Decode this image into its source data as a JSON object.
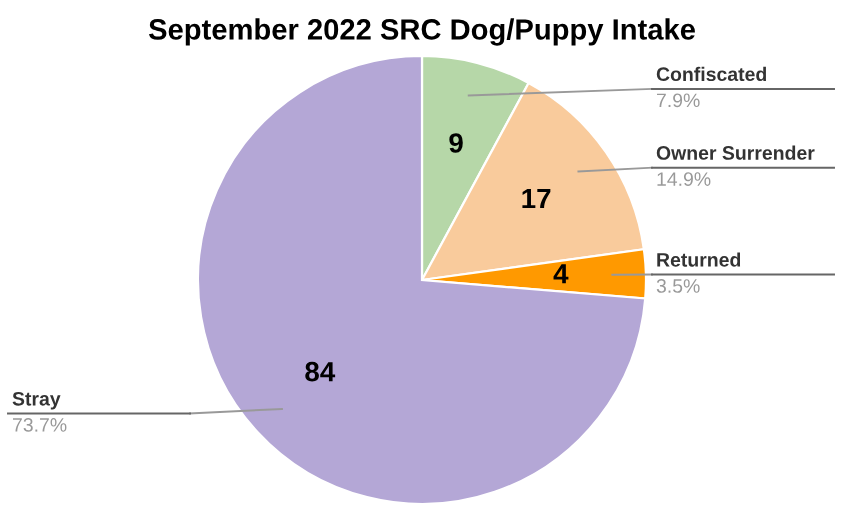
{
  "chart_data": {
    "type": "pie",
    "title": "September 2022 SRC Dog/Puppy Intake",
    "categories": [
      "Confiscated",
      "Owner Surrender",
      "Returned",
      "Stray"
    ],
    "values": [
      9,
      17,
      4,
      84
    ],
    "colors": [
      "#b6d7a8",
      "#f9cb9c",
      "#ff9900",
      "#b4a7d6"
    ],
    "value_labels": [
      "9",
      "17",
      "4",
      "84"
    ],
    "annotations": [
      "7.9%",
      "14.9%",
      "3.5%",
      "73.7%"
    ]
  }
}
